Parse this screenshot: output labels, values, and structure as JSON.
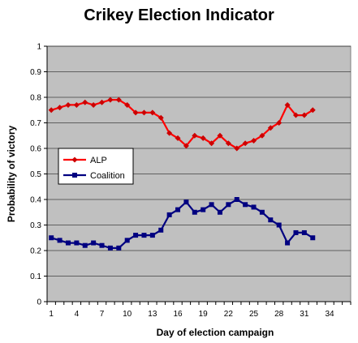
{
  "chart_data": {
    "type": "line",
    "title": "Crikey Election Indicator",
    "xlabel": "Day of election campaign",
    "ylabel": "Probability of victory",
    "xlim": [
      1,
      36
    ],
    "ylim": [
      0,
      1
    ],
    "x_tick_labels": [
      "1",
      "4",
      "7",
      "10",
      "13",
      "16",
      "19",
      "22",
      "25",
      "28",
      "31",
      "34"
    ],
    "y_tick_labels": [
      "0",
      "0.1",
      "0.2",
      "0.3",
      "0.4",
      "0.5",
      "0.6",
      "0.7",
      "0.8",
      "0.9",
      "1"
    ],
    "grid": true,
    "legend_position": "left",
    "plot_background": "#c0c0c0",
    "series": [
      {
        "name": "ALP",
        "color": "#ff0000",
        "marker_color": "#cc0000",
        "marker": "diamond",
        "x": [
          1,
          2,
          3,
          4,
          5,
          6,
          7,
          8,
          9,
          10,
          11,
          12,
          13,
          14,
          15,
          16,
          17,
          18,
          19,
          20,
          21,
          22,
          23,
          24,
          25,
          26,
          27,
          28,
          29,
          30,
          31,
          32
        ],
        "values": [
          0.75,
          0.76,
          0.77,
          0.77,
          0.78,
          0.77,
          0.78,
          0.79,
          0.79,
          0.77,
          0.74,
          0.74,
          0.74,
          0.72,
          0.66,
          0.64,
          0.61,
          0.65,
          0.64,
          0.62,
          0.65,
          0.62,
          0.6,
          0.62,
          0.63,
          0.65,
          0.68,
          0.7,
          0.77,
          0.73,
          0.73,
          0.75
        ]
      },
      {
        "name": "Coalition",
        "color": "#000080",
        "marker_color": "#000080",
        "marker": "square",
        "x": [
          1,
          2,
          3,
          4,
          5,
          6,
          7,
          8,
          9,
          10,
          11,
          12,
          13,
          14,
          15,
          16,
          17,
          18,
          19,
          20,
          21,
          22,
          23,
          24,
          25,
          26,
          27,
          28,
          29,
          30,
          31,
          32
        ],
        "values": [
          0.25,
          0.24,
          0.23,
          0.23,
          0.22,
          0.23,
          0.22,
          0.21,
          0.21,
          0.24,
          0.26,
          0.26,
          0.26,
          0.28,
          0.34,
          0.36,
          0.39,
          0.35,
          0.36,
          0.38,
          0.35,
          0.38,
          0.4,
          0.38,
          0.37,
          0.35,
          0.32,
          0.3,
          0.23,
          0.27,
          0.27,
          0.25
        ]
      }
    ]
  }
}
